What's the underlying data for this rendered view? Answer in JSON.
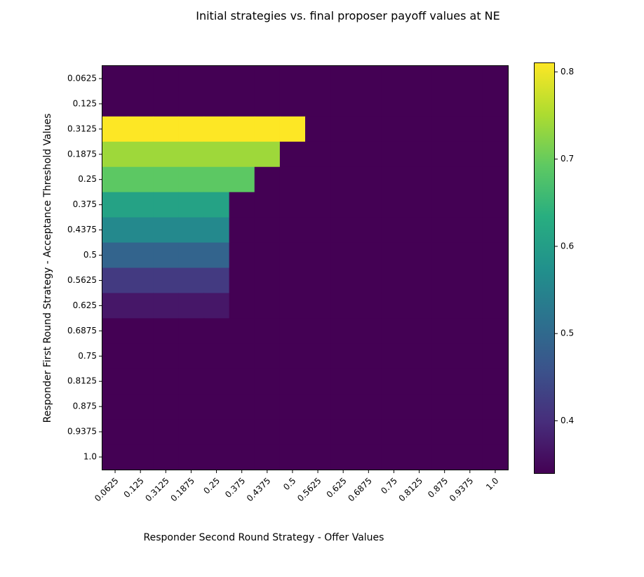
{
  "chart_data": {
    "type": "heatmap",
    "title": "Initial strategies vs. final proposer payoff values at NE",
    "xlabel": "Responder Second Round Strategy - Offer Values",
    "ylabel": "Responder First Round Strategy - Acceptance Threshold Values",
    "x_categories": [
      "0.0625",
      "0.125",
      "0.3125",
      "0.1875",
      "0.25",
      "0.375",
      "0.4375",
      "0.5",
      "0.5625",
      "0.625",
      "0.6875",
      "0.75",
      "0.8125",
      "0.875",
      "0.9375",
      "1.0"
    ],
    "y_categories": [
      "0.0625",
      "0.125",
      "0.3125",
      "0.1875",
      "0.25",
      "0.375",
      "0.4375",
      "0.5",
      "0.5625",
      "0.625",
      "0.6875",
      "0.75",
      "0.8125",
      "0.875",
      "0.9375",
      "1.0"
    ],
    "values": [
      [
        0.34,
        0.34,
        0.34,
        0.34,
        0.34,
        0.34,
        0.34,
        0.34,
        0.34,
        0.34,
        0.34,
        0.34,
        0.34,
        0.34,
        0.34,
        0.34
      ],
      [
        0.34,
        0.34,
        0.34,
        0.34,
        0.34,
        0.34,
        0.34,
        0.34,
        0.34,
        0.34,
        0.34,
        0.34,
        0.34,
        0.34,
        0.34,
        0.34
      ],
      [
        0.81,
        0.81,
        0.81,
        0.81,
        0.81,
        0.81,
        0.81,
        0.81,
        0.34,
        0.34,
        0.34,
        0.34,
        0.34,
        0.34,
        0.34,
        0.34
      ],
      [
        0.74,
        0.74,
        0.74,
        0.74,
        0.74,
        0.74,
        0.74,
        0.34,
        0.34,
        0.34,
        0.34,
        0.34,
        0.34,
        0.34,
        0.34,
        0.34
      ],
      [
        0.69,
        0.69,
        0.69,
        0.69,
        0.69,
        0.69,
        0.34,
        0.34,
        0.34,
        0.34,
        0.34,
        0.34,
        0.34,
        0.34,
        0.34,
        0.34
      ],
      [
        0.61,
        0.61,
        0.61,
        0.61,
        0.61,
        0.34,
        0.34,
        0.34,
        0.34,
        0.34,
        0.34,
        0.34,
        0.34,
        0.34,
        0.34,
        0.34
      ],
      [
        0.56,
        0.56,
        0.56,
        0.56,
        0.56,
        0.34,
        0.34,
        0.34,
        0.34,
        0.34,
        0.34,
        0.34,
        0.34,
        0.34,
        0.34,
        0.34
      ],
      [
        0.49,
        0.49,
        0.49,
        0.49,
        0.49,
        0.34,
        0.34,
        0.34,
        0.34,
        0.34,
        0.34,
        0.34,
        0.34,
        0.34,
        0.34,
        0.34
      ],
      [
        0.42,
        0.42,
        0.42,
        0.42,
        0.42,
        0.34,
        0.34,
        0.34,
        0.34,
        0.34,
        0.34,
        0.34,
        0.34,
        0.34,
        0.34,
        0.34
      ],
      [
        0.37,
        0.37,
        0.37,
        0.37,
        0.37,
        0.34,
        0.34,
        0.34,
        0.34,
        0.34,
        0.34,
        0.34,
        0.34,
        0.34,
        0.34,
        0.34
      ],
      [
        0.34,
        0.34,
        0.34,
        0.34,
        0.34,
        0.34,
        0.34,
        0.34,
        0.34,
        0.34,
        0.34,
        0.34,
        0.34,
        0.34,
        0.34,
        0.34
      ],
      [
        0.34,
        0.34,
        0.34,
        0.34,
        0.34,
        0.34,
        0.34,
        0.34,
        0.34,
        0.34,
        0.34,
        0.34,
        0.34,
        0.34,
        0.34,
        0.34
      ],
      [
        0.34,
        0.34,
        0.34,
        0.34,
        0.34,
        0.34,
        0.34,
        0.34,
        0.34,
        0.34,
        0.34,
        0.34,
        0.34,
        0.34,
        0.34,
        0.34
      ],
      [
        0.34,
        0.34,
        0.34,
        0.34,
        0.34,
        0.34,
        0.34,
        0.34,
        0.34,
        0.34,
        0.34,
        0.34,
        0.34,
        0.34,
        0.34,
        0.34
      ],
      [
        0.34,
        0.34,
        0.34,
        0.34,
        0.34,
        0.34,
        0.34,
        0.34,
        0.34,
        0.34,
        0.34,
        0.34,
        0.34,
        0.34,
        0.34,
        0.34
      ],
      [
        0.34,
        0.34,
        0.34,
        0.34,
        0.34,
        0.34,
        0.34,
        0.34,
        0.34,
        0.34,
        0.34,
        0.34,
        0.34,
        0.34,
        0.34,
        0.34
      ]
    ],
    "colormap": "viridis",
    "colorbar": {
      "range": [
        0.34,
        0.81
      ],
      "ticks": [
        0.4,
        0.5,
        0.6,
        0.7,
        0.8
      ],
      "tick_labels": [
        "0.4",
        "0.5",
        "0.6",
        "0.7",
        "0.8"
      ]
    },
    "grid": false
  }
}
